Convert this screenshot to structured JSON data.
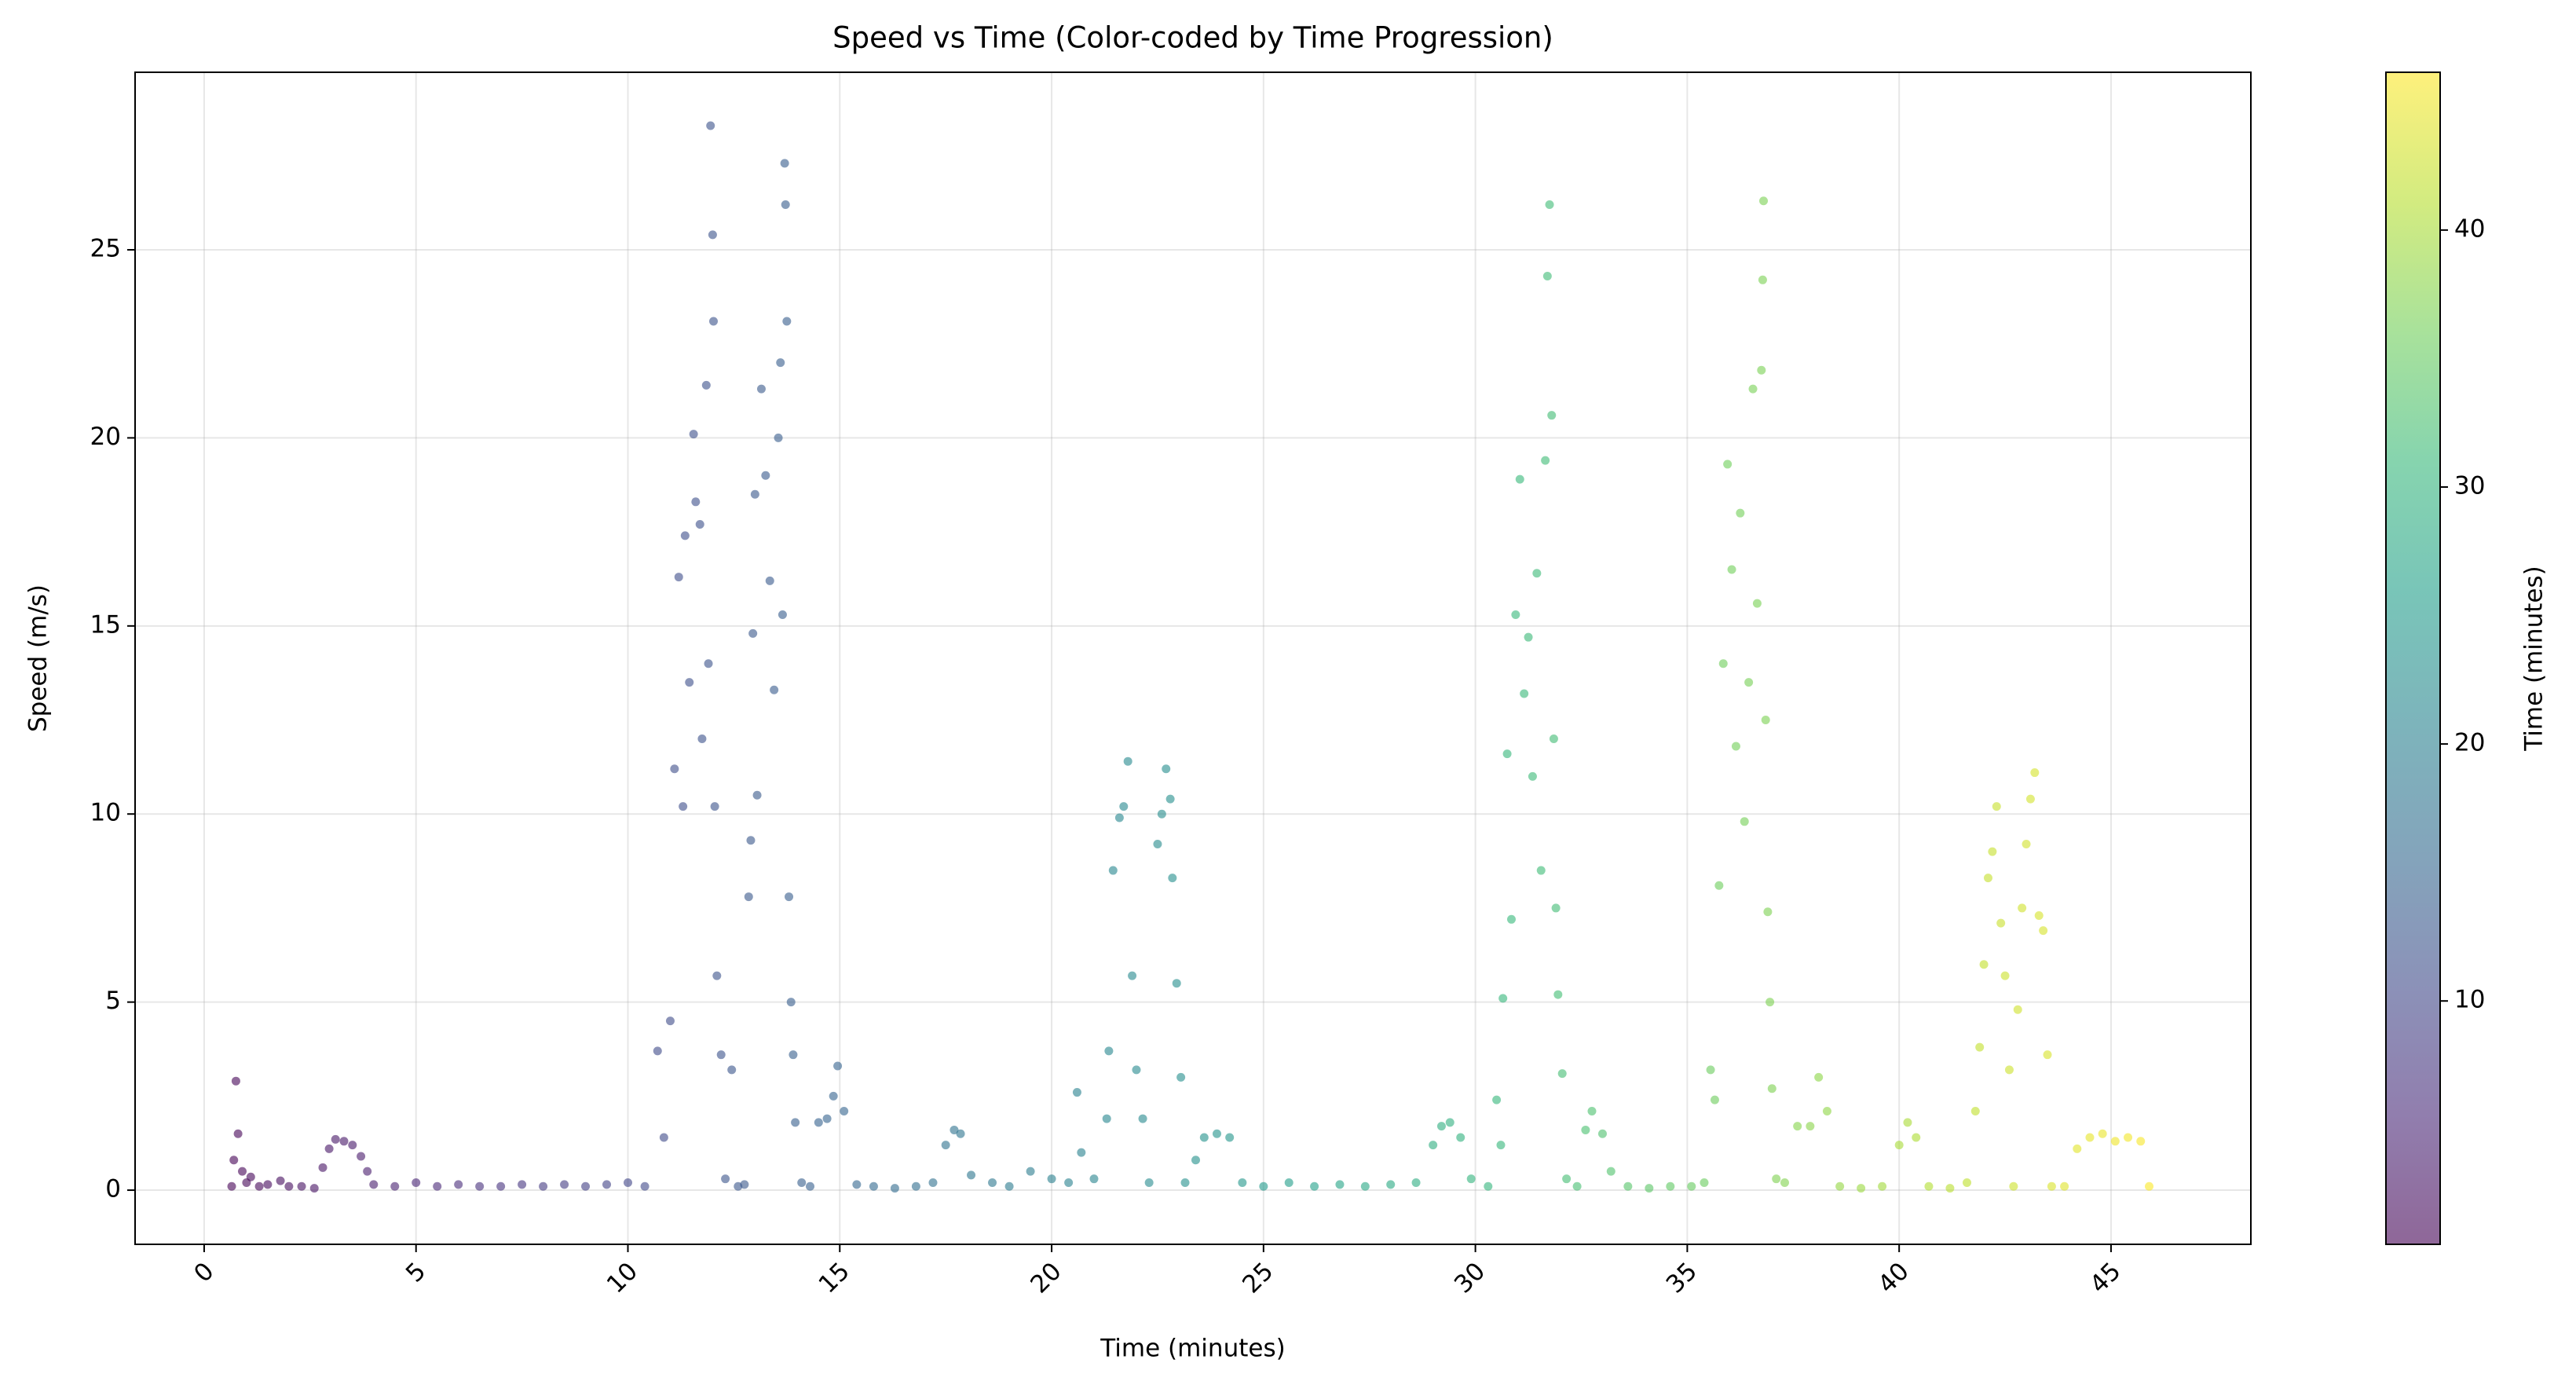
{
  "chart_data": {
    "type": "scatter",
    "title": "Speed vs Time (Color-coded by Time Progression)",
    "x_label": "Time (minutes)",
    "y_label": "Speed (m/s)",
    "xlim": [
      -1.63,
      48.3
    ],
    "ylim": [
      -1.44,
      29.72
    ],
    "xticks": [
      0,
      5,
      10,
      15,
      20,
      25,
      30,
      35,
      40,
      45
    ],
    "yticks": [
      0,
      5,
      10,
      15,
      20,
      25
    ],
    "grid": true,
    "alpha": 0.6,
    "colorbar": {
      "label": "Time (minutes)",
      "colormap": "viridis",
      "clim": [
        0.53,
        46.14
      ],
      "ticks": [
        10,
        20,
        30,
        40
      ]
    },
    "x": [
      0.65,
      0.7,
      0.75,
      0.8,
      0.9,
      1.0,
      1.1,
      1.3,
      1.5,
      1.8,
      2.0,
      2.3,
      2.6,
      2.8,
      2.95,
      3.1,
      3.3,
      3.5,
      3.7,
      3.85,
      4.0,
      4.5,
      5.0,
      5.5,
      6.0,
      6.5,
      7.0,
      7.5,
      8.0,
      8.5,
      9.0,
      9.5,
      10.0,
      10.4,
      10.7,
      10.85,
      11.0,
      11.1,
      11.2,
      11.3,
      11.35,
      11.45,
      11.55,
      11.6,
      11.7,
      11.75,
      11.85,
      11.9,
      11.95,
      12.0,
      12.02,
      12.05,
      12.1,
      12.2,
      12.3,
      12.45,
      12.6,
      12.75,
      12.85,
      12.9,
      12.95,
      13.0,
      13.05,
      13.15,
      13.25,
      13.35,
      13.45,
      13.55,
      13.6,
      13.65,
      13.7,
      13.72,
      13.75,
      13.8,
      13.85,
      13.9,
      13.95,
      14.1,
      14.3,
      14.5,
      14.7,
      14.85,
      14.95,
      15.1,
      15.4,
      15.8,
      16.3,
      16.8,
      17.2,
      17.5,
      17.7,
      17.85,
      18.1,
      18.6,
      19.0,
      19.5,
      20.0,
      20.4,
      20.6,
      20.7,
      21.0,
      21.3,
      21.35,
      21.45,
      21.6,
      21.7,
      21.8,
      21.9,
      22.0,
      22.15,
      22.3,
      22.5,
      22.6,
      22.7,
      22.8,
      22.85,
      22.95,
      23.05,
      23.15,
      23.4,
      23.6,
      23.9,
      24.2,
      24.5,
      25.0,
      25.6,
      26.2,
      26.8,
      27.4,
      28.0,
      28.6,
      29.0,
      29.2,
      29.4,
      29.65,
      29.9,
      30.3,
      30.5,
      30.6,
      30.65,
      30.75,
      30.85,
      30.95,
      31.05,
      31.15,
      31.25,
      31.35,
      31.45,
      31.55,
      31.65,
      31.7,
      31.75,
      31.8,
      31.85,
      31.9,
      31.95,
      32.05,
      32.15,
      32.4,
      32.6,
      32.75,
      33.0,
      33.2,
      33.6,
      34.1,
      34.6,
      35.1,
      35.4,
      35.55,
      35.65,
      35.75,
      35.85,
      35.95,
      36.05,
      36.15,
      36.25,
      36.35,
      36.45,
      36.55,
      36.65,
      36.75,
      36.78,
      36.8,
      36.85,
      36.9,
      36.95,
      37.0,
      37.1,
      37.3,
      37.6,
      37.9,
      38.1,
      38.3,
      38.6,
      39.1,
      39.6,
      40.0,
      40.2,
      40.4,
      40.7,
      41.2,
      41.6,
      41.8,
      41.9,
      42.0,
      42.1,
      42.2,
      42.3,
      42.4,
      42.5,
      42.6,
      42.7,
      42.8,
      42.9,
      43.0,
      43.1,
      43.2,
      43.3,
      43.4,
      43.5,
      43.6,
      43.9,
      44.2,
      44.5,
      44.8,
      45.1,
      45.4,
      45.7,
      45.9
    ],
    "values": [
      0.1,
      0.8,
      2.9,
      1.5,
      0.5,
      0.2,
      0.35,
      0.1,
      0.15,
      0.25,
      0.1,
      0.1,
      0.05,
      0.6,
      1.1,
      1.35,
      1.3,
      1.2,
      0.9,
      0.5,
      0.15,
      0.1,
      0.2,
      0.1,
      0.15,
      0.1,
      0.1,
      0.15,
      0.1,
      0.15,
      0.1,
      0.15,
      0.2,
      0.1,
      3.7,
      1.4,
      4.5,
      11.2,
      16.3,
      10.2,
      17.4,
      13.5,
      20.1,
      18.3,
      17.7,
      12.0,
      21.4,
      14.0,
      28.3,
      25.4,
      23.1,
      10.2,
      5.7,
      3.6,
      0.3,
      3.2,
      0.1,
      0.15,
      7.8,
      9.3,
      14.8,
      18.5,
      10.5,
      21.3,
      19.0,
      16.2,
      13.3,
      20.0,
      22.0,
      15.3,
      27.3,
      26.2,
      23.1,
      7.8,
      5.0,
      3.6,
      1.8,
      0.2,
      0.1,
      1.8,
      1.9,
      2.5,
      3.3,
      2.1,
      0.15,
      0.1,
      0.05,
      0.1,
      0.2,
      1.2,
      1.6,
      1.5,
      0.4,
      0.2,
      0.1,
      0.5,
      0.3,
      0.2,
      2.6,
      1.0,
      0.3,
      1.9,
      3.7,
      8.5,
      9.9,
      10.2,
      11.4,
      5.7,
      3.2,
      1.9,
      0.2,
      9.2,
      10.0,
      11.2,
      10.4,
      8.3,
      5.5,
      3.0,
      0.2,
      0.8,
      1.4,
      1.5,
      1.4,
      0.2,
      0.1,
      0.2,
      0.1,
      0.15,
      0.1,
      0.15,
      0.2,
      1.2,
      1.7,
      1.8,
      1.4,
      0.3,
      0.1,
      2.4,
      1.2,
      5.1,
      11.6,
      7.2,
      15.3,
      18.9,
      13.2,
      14.7,
      11.0,
      16.4,
      8.5,
      19.4,
      24.3,
      26.2,
      20.6,
      12.0,
      7.5,
      5.2,
      3.1,
      0.3,
      0.1,
      1.6,
      2.1,
      1.5,
      0.5,
      0.1,
      0.05,
      0.1,
      0.1,
      0.2,
      3.2,
      2.4,
      8.1,
      14.0,
      19.3,
      16.5,
      11.8,
      18.0,
      9.8,
      13.5,
      21.3,
      15.6,
      21.8,
      24.2,
      26.3,
      12.5,
      7.4,
      5.0,
      2.7,
      0.3,
      0.2,
      1.7,
      1.7,
      3.0,
      2.1,
      0.1,
      0.05,
      0.1,
      1.2,
      1.8,
      1.4,
      0.1,
      0.05,
      0.2,
      2.1,
      3.8,
      6.0,
      8.3,
      9.0,
      10.2,
      7.1,
      5.7,
      3.2,
      0.1,
      4.8,
      7.5,
      9.2,
      10.4,
      11.1,
      7.3,
      6.9,
      3.6,
      0.1,
      0.1,
      1.1,
      1.4,
      1.5,
      1.3,
      1.4,
      1.3,
      0.1
    ]
  }
}
